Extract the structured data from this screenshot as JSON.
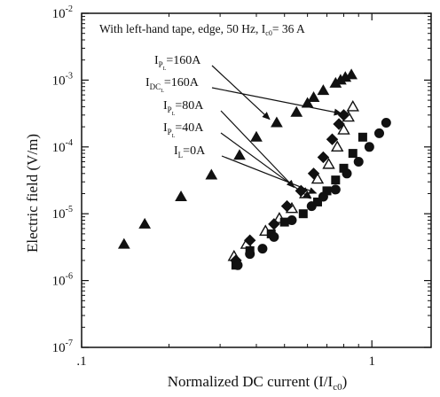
{
  "chart_data": {
    "type": "scatter",
    "xscale": "log",
    "yscale": "log",
    "xlim": [
      0.1,
      1.6
    ],
    "ylim": [
      1e-07,
      0.01
    ],
    "xlabel": "Normalized DC current (I/I",
    "xlabel_sub": "c0",
    "xlabel_tail": ")",
    "ylabel": "Electric field (V/m)",
    "x_ticks": [
      {
        "value": 0.1,
        "label": ".1"
      },
      {
        "value": 1,
        "label": "1"
      }
    ],
    "y_ticks": [
      {
        "value": 0.01,
        "base": "10",
        "exp": "-2"
      },
      {
        "value": 0.001,
        "base": "10",
        "exp": "-3"
      },
      {
        "value": 0.0001,
        "base": "10",
        "exp": "-4"
      },
      {
        "value": 1e-05,
        "base": "10",
        "exp": "-5"
      },
      {
        "value": 1e-06,
        "base": "10",
        "exp": "-6"
      },
      {
        "value": 1e-07,
        "base": "10",
        "exp": "-7"
      }
    ],
    "grid": false,
    "note": {
      "text": "With left-hand tape, edge, 50 Hz, I",
      "sub": "c0",
      "tail": "= 36 A"
    },
    "series": [
      {
        "marker": "triangle-filled",
        "annotation": {
          "main": "I",
          "sub": "P",
          "subsub": "L",
          "tail": "=160A"
        },
        "points": [
          [
            0.14,
            3.5e-06
          ],
          [
            0.165,
            7e-06
          ],
          [
            0.22,
            1.8e-05
          ],
          [
            0.28,
            3.8e-05
          ],
          [
            0.35,
            7.5e-05
          ],
          [
            0.4,
            0.00014
          ],
          [
            0.47,
            0.00023
          ],
          [
            0.55,
            0.00033
          ],
          [
            0.6,
            0.00045
          ],
          [
            0.63,
            0.00055
          ],
          [
            0.68,
            0.0007
          ],
          [
            0.75,
            0.0009
          ],
          [
            0.78,
            0.001
          ],
          [
            0.81,
            0.0011
          ],
          [
            0.85,
            0.0012
          ]
        ]
      },
      {
        "marker": "triangle-open",
        "annotation": {
          "main": "I",
          "sub": "DC",
          "subsub": "L",
          "tail": "=160A"
        },
        "points": [
          [
            0.335,
            2.3e-06
          ],
          [
            0.37,
            3.5e-06
          ],
          [
            0.43,
            5.5e-06
          ],
          [
            0.48,
            8.5e-06
          ],
          [
            0.53,
            1.2e-05
          ],
          [
            0.59,
            2e-05
          ],
          [
            0.65,
            3.3e-05
          ],
          [
            0.71,
            5.5e-05
          ],
          [
            0.76,
            0.0001
          ],
          [
            0.8,
            0.00018
          ],
          [
            0.83,
            0.00028
          ],
          [
            0.86,
            0.0004
          ]
        ]
      },
      {
        "marker": "diamond-filled",
        "annotation": {
          "main": "I",
          "sub": "P",
          "subsub": "L",
          "tail": "=80A"
        },
        "points": [
          [
            0.34,
            2e-06
          ],
          [
            0.38,
            4e-06
          ],
          [
            0.46,
            7e-06
          ],
          [
            0.51,
            1.3e-05
          ],
          [
            0.57,
            2.2e-05
          ],
          [
            0.63,
            4e-05
          ],
          [
            0.68,
            7e-05
          ],
          [
            0.73,
            0.00013
          ],
          [
            0.77,
            0.00022
          ],
          [
            0.8,
            0.0003
          ]
        ]
      },
      {
        "marker": "square-filled",
        "annotation": {
          "main": "I",
          "sub": "P",
          "subsub": "L",
          "tail": "=40A"
        },
        "points": [
          [
            0.34,
            1.7e-06
          ],
          [
            0.38,
            2.8e-06
          ],
          [
            0.45,
            5e-06
          ],
          [
            0.5,
            7.5e-06
          ],
          [
            0.58,
            1e-05
          ],
          [
            0.65,
            1.5e-05
          ],
          [
            0.7,
            2.2e-05
          ],
          [
            0.75,
            3.2e-05
          ],
          [
            0.8,
            4.8e-05
          ],
          [
            0.86,
            8e-05
          ],
          [
            0.93,
            0.00014
          ]
        ]
      },
      {
        "marker": "circle-filled",
        "annotation": {
          "main": "I",
          "sub": "L",
          "subsub": "",
          "tail": "=0A"
        },
        "points": [
          [
            0.345,
            1.7e-06
          ],
          [
            0.38,
            2.5e-06
          ],
          [
            0.42,
            3e-06
          ],
          [
            0.46,
            4.5e-06
          ],
          [
            0.53,
            8e-06
          ],
          [
            0.62,
            1.3e-05
          ],
          [
            0.68,
            1.8e-05
          ],
          [
            0.75,
            2.3e-05
          ],
          [
            0.82,
            4e-05
          ],
          [
            0.9,
            6e-05
          ],
          [
            0.98,
            0.0001
          ],
          [
            1.06,
            0.00016
          ],
          [
            1.12,
            0.00023
          ]
        ]
      }
    ]
  }
}
